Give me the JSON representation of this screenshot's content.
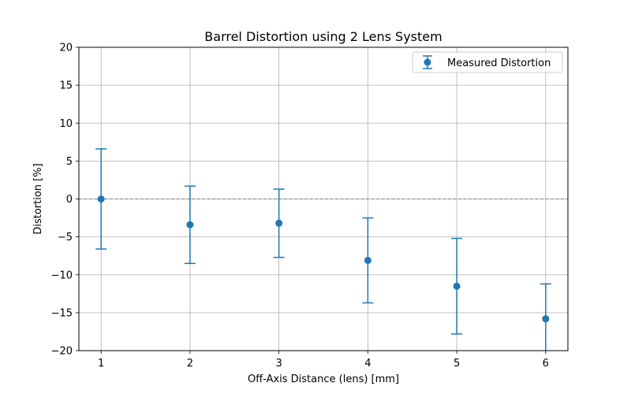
{
  "chart_data": {
    "type": "scatter",
    "title": "Barrel Distortion using 2 Lens System",
    "xlabel": "Off-Axis Distance (lens) [mm]",
    "ylabel": "Distortion [%]",
    "xlim": [
      0.75,
      6.25
    ],
    "ylim": [
      -20,
      20
    ],
    "x_ticks": [
      1,
      2,
      3,
      4,
      5,
      6
    ],
    "y_ticks": [
      -20,
      -15,
      -10,
      -5,
      0,
      5,
      10,
      15,
      20
    ],
    "grid": true,
    "legend_position": "top-right",
    "reference_line": {
      "y": 0,
      "style": "dashed",
      "color": "#808080"
    },
    "colors": {
      "series": "#1f77b4"
    },
    "series": [
      {
        "name": "Measured Distortion",
        "x": [
          1,
          2,
          3,
          4,
          5,
          6
        ],
        "y": [
          0.0,
          -3.4,
          -3.2,
          -8.1,
          -11.5,
          -15.8
        ],
        "yerr": [
          6.6,
          5.1,
          4.5,
          5.6,
          6.3,
          4.6
        ]
      }
    ]
  }
}
